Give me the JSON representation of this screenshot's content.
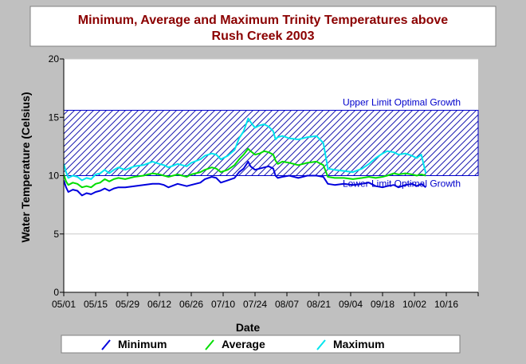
{
  "chart_data": {
    "type": "line",
    "title_lines": [
      "Minimum, Average and Maximum Trinity Temperatures above",
      "Rush Creek 2003"
    ],
    "xlabel": "Date",
    "ylabel": "Water Temperature (Celsius)",
    "ylim": [
      0,
      20
    ],
    "y_ticks": [
      "0",
      "5",
      "10",
      "15",
      "20"
    ],
    "x_start": "2003-05-01",
    "x_end": "2003-10-30",
    "x_tick_labels": [
      "05/01",
      "05/15",
      "05/29",
      "06/12",
      "06/26",
      "07/10",
      "07/24",
      "08/07",
      "08/21",
      "09/04",
      "09/18",
      "10/02",
      "10/16"
    ],
    "x_tick_dates": [
      "2003-05-01",
      "2003-05-15",
      "2003-05-29",
      "2003-06-12",
      "2003-06-26",
      "2003-07-10",
      "2003-07-24",
      "2003-08-07",
      "2003-08-21",
      "2003-09-04",
      "2003-09-18",
      "2003-10-02",
      "2003-10-16"
    ],
    "grid": true,
    "legend_position": "bottom",
    "band": {
      "lower": 10,
      "upper": 15.6,
      "upper_label": "Upper Limit Optimal Growth",
      "lower_label": "Lower Limit Optimal Growth",
      "color": "#0000cc"
    },
    "series": [
      {
        "name": "Minimum",
        "color": "#0000dd",
        "points": [
          [
            "2003-05-01",
            9.6
          ],
          [
            "2003-05-02",
            9.0
          ],
          [
            "2003-05-03",
            8.6
          ],
          [
            "2003-05-05",
            8.8
          ],
          [
            "2003-05-07",
            8.7
          ],
          [
            "2003-05-09",
            8.3
          ],
          [
            "2003-05-11",
            8.5
          ],
          [
            "2003-05-13",
            8.4
          ],
          [
            "2003-05-15",
            8.6
          ],
          [
            "2003-05-17",
            8.7
          ],
          [
            "2003-05-19",
            8.9
          ],
          [
            "2003-05-21",
            8.7
          ],
          [
            "2003-05-23",
            8.9
          ],
          [
            "2003-05-25",
            9.0
          ],
          [
            "2003-05-28",
            9.0
          ],
          [
            "2003-06-01",
            9.1
          ],
          [
            "2003-06-05",
            9.2
          ],
          [
            "2003-06-09",
            9.3
          ],
          [
            "2003-06-12",
            9.3
          ],
          [
            "2003-06-14",
            9.2
          ],
          [
            "2003-06-16",
            9.0
          ],
          [
            "2003-06-20",
            9.3
          ],
          [
            "2003-06-24",
            9.1
          ],
          [
            "2003-06-26",
            9.2
          ],
          [
            "2003-06-30",
            9.4
          ],
          [
            "2003-07-02",
            9.7
          ],
          [
            "2003-07-05",
            9.9
          ],
          [
            "2003-07-07",
            9.8
          ],
          [
            "2003-07-09",
            9.4
          ],
          [
            "2003-07-12",
            9.6
          ],
          [
            "2003-07-15",
            9.8
          ],
          [
            "2003-07-17",
            10.3
          ],
          [
            "2003-07-19",
            10.6
          ],
          [
            "2003-07-21",
            11.2
          ],
          [
            "2003-07-22",
            10.8
          ],
          [
            "2003-07-24",
            10.5
          ],
          [
            "2003-07-26",
            10.6
          ],
          [
            "2003-07-28",
            10.7
          ],
          [
            "2003-07-30",
            10.8
          ],
          [
            "2003-08-01",
            10.6
          ],
          [
            "2003-08-02",
            10.0
          ],
          [
            "2003-08-03",
            9.8
          ],
          [
            "2003-08-05",
            9.9
          ],
          [
            "2003-08-08",
            10.0
          ],
          [
            "2003-08-12",
            9.8
          ],
          [
            "2003-08-16",
            10.0
          ],
          [
            "2003-08-20",
            10.0
          ],
          [
            "2003-08-23",
            9.9
          ],
          [
            "2003-08-25",
            9.3
          ],
          [
            "2003-08-28",
            9.2
          ],
          [
            "2003-09-01",
            9.3
          ],
          [
            "2003-09-05",
            9.2
          ],
          [
            "2003-09-09",
            9.3
          ],
          [
            "2003-09-12",
            9.4
          ],
          [
            "2003-09-15",
            9.1
          ],
          [
            "2003-09-18",
            9.0
          ],
          [
            "2003-09-20",
            9.1
          ],
          [
            "2003-09-23",
            9.2
          ],
          [
            "2003-09-25",
            9.0
          ],
          [
            "2003-09-28",
            9.2
          ],
          [
            "2003-10-01",
            9.3
          ],
          [
            "2003-10-03",
            9.1
          ],
          [
            "2003-10-05",
            9.3
          ],
          [
            "2003-10-07",
            9.0
          ]
        ]
      },
      {
        "name": "Average",
        "color": "#00dd00",
        "points": [
          [
            "2003-05-01",
            10.1
          ],
          [
            "2003-05-02",
            9.5
          ],
          [
            "2003-05-03",
            9.2
          ],
          [
            "2003-05-05",
            9.4
          ],
          [
            "2003-05-07",
            9.3
          ],
          [
            "2003-05-09",
            9.0
          ],
          [
            "2003-05-11",
            9.1
          ],
          [
            "2003-05-13",
            9.0
          ],
          [
            "2003-05-15",
            9.3
          ],
          [
            "2003-05-17",
            9.4
          ],
          [
            "2003-05-19",
            9.7
          ],
          [
            "2003-05-21",
            9.5
          ],
          [
            "2003-05-23",
            9.7
          ],
          [
            "2003-05-25",
            9.8
          ],
          [
            "2003-05-28",
            9.7
          ],
          [
            "2003-06-01",
            9.9
          ],
          [
            "2003-06-05",
            10.0
          ],
          [
            "2003-06-09",
            10.2
          ],
          [
            "2003-06-12",
            10.1
          ],
          [
            "2003-06-14",
            10.0
          ],
          [
            "2003-06-16",
            9.9
          ],
          [
            "2003-06-20",
            10.1
          ],
          [
            "2003-06-24",
            9.9
          ],
          [
            "2003-06-26",
            10.1
          ],
          [
            "2003-06-30",
            10.3
          ],
          [
            "2003-07-02",
            10.5
          ],
          [
            "2003-07-05",
            10.7
          ],
          [
            "2003-07-07",
            10.6
          ],
          [
            "2003-07-09",
            10.3
          ],
          [
            "2003-07-12",
            10.5
          ],
          [
            "2003-07-15",
            10.9
          ],
          [
            "2003-07-17",
            11.4
          ],
          [
            "2003-07-19",
            11.8
          ],
          [
            "2003-07-21",
            12.3
          ],
          [
            "2003-07-22",
            12.1
          ],
          [
            "2003-07-24",
            11.8
          ],
          [
            "2003-07-26",
            11.9
          ],
          [
            "2003-07-28",
            12.1
          ],
          [
            "2003-07-30",
            12.0
          ],
          [
            "2003-08-01",
            11.8
          ],
          [
            "2003-08-02",
            11.3
          ],
          [
            "2003-08-03",
            11.0
          ],
          [
            "2003-08-05",
            11.2
          ],
          [
            "2003-08-08",
            11.1
          ],
          [
            "2003-08-12",
            10.9
          ],
          [
            "2003-08-16",
            11.1
          ],
          [
            "2003-08-20",
            11.2
          ],
          [
            "2003-08-23",
            10.9
          ],
          [
            "2003-08-25",
            9.9
          ],
          [
            "2003-08-28",
            9.8
          ],
          [
            "2003-09-01",
            9.8
          ],
          [
            "2003-09-05",
            9.7
          ],
          [
            "2003-09-09",
            9.8
          ],
          [
            "2003-09-12",
            9.9
          ],
          [
            "2003-09-15",
            9.8
          ],
          [
            "2003-09-18",
            9.9
          ],
          [
            "2003-09-20",
            10.0
          ],
          [
            "2003-09-23",
            10.2
          ],
          [
            "2003-09-25",
            10.1
          ],
          [
            "2003-09-28",
            10.2
          ],
          [
            "2003-10-01",
            10.1
          ],
          [
            "2003-10-03",
            10.0
          ],
          [
            "2003-10-05",
            10.1
          ],
          [
            "2003-10-07",
            10.0
          ]
        ]
      },
      {
        "name": "Maximum",
        "color": "#00e5ee",
        "points": [
          [
            "2003-05-01",
            11.0
          ],
          [
            "2003-05-02",
            10.3
          ],
          [
            "2003-05-03",
            9.8
          ],
          [
            "2003-05-05",
            10.0
          ],
          [
            "2003-05-07",
            9.9
          ],
          [
            "2003-05-09",
            9.6
          ],
          [
            "2003-05-11",
            9.8
          ],
          [
            "2003-05-13",
            9.7
          ],
          [
            "2003-05-15",
            10.1
          ],
          [
            "2003-05-17",
            10.2
          ],
          [
            "2003-05-19",
            10.5
          ],
          [
            "2003-05-21",
            10.2
          ],
          [
            "2003-05-23",
            10.5
          ],
          [
            "2003-05-25",
            10.7
          ],
          [
            "2003-05-28",
            10.5
          ],
          [
            "2003-06-01",
            10.8
          ],
          [
            "2003-06-05",
            10.9
          ],
          [
            "2003-06-09",
            11.2
          ],
          [
            "2003-06-12",
            11.0
          ],
          [
            "2003-06-14",
            10.9
          ],
          [
            "2003-06-16",
            10.7
          ],
          [
            "2003-06-20",
            11.0
          ],
          [
            "2003-06-24",
            10.8
          ],
          [
            "2003-06-26",
            11.1
          ],
          [
            "2003-06-30",
            11.4
          ],
          [
            "2003-07-02",
            11.7
          ],
          [
            "2003-07-05",
            11.9
          ],
          [
            "2003-07-07",
            11.8
          ],
          [
            "2003-07-09",
            11.4
          ],
          [
            "2003-07-12",
            11.7
          ],
          [
            "2003-07-15",
            12.2
          ],
          [
            "2003-07-17",
            13.2
          ],
          [
            "2003-07-19",
            13.8
          ],
          [
            "2003-07-21",
            14.9
          ],
          [
            "2003-07-22",
            14.6
          ],
          [
            "2003-07-24",
            14.1
          ],
          [
            "2003-07-26",
            14.3
          ],
          [
            "2003-07-28",
            14.4
          ],
          [
            "2003-07-30",
            14.2
          ],
          [
            "2003-08-01",
            13.8
          ],
          [
            "2003-08-02",
            13.1
          ],
          [
            "2003-08-03",
            13.3
          ],
          [
            "2003-08-05",
            13.4
          ],
          [
            "2003-08-08",
            13.2
          ],
          [
            "2003-08-12",
            13.1
          ],
          [
            "2003-08-16",
            13.3
          ],
          [
            "2003-08-20",
            13.4
          ],
          [
            "2003-08-23",
            12.8
          ],
          [
            "2003-08-25",
            10.6
          ],
          [
            "2003-08-28",
            10.5
          ],
          [
            "2003-09-01",
            10.4
          ],
          [
            "2003-09-05",
            10.3
          ],
          [
            "2003-09-09",
            10.6
          ],
          [
            "2003-09-12",
            11.0
          ],
          [
            "2003-09-15",
            11.5
          ],
          [
            "2003-09-18",
            11.9
          ],
          [
            "2003-09-20",
            12.1
          ],
          [
            "2003-09-23",
            12.0
          ],
          [
            "2003-09-25",
            11.8
          ],
          [
            "2003-09-28",
            11.9
          ],
          [
            "2003-10-01",
            11.7
          ],
          [
            "2003-10-03",
            11.5
          ],
          [
            "2003-10-05",
            11.8
          ],
          [
            "2003-10-07",
            10.2
          ]
        ]
      }
    ]
  }
}
